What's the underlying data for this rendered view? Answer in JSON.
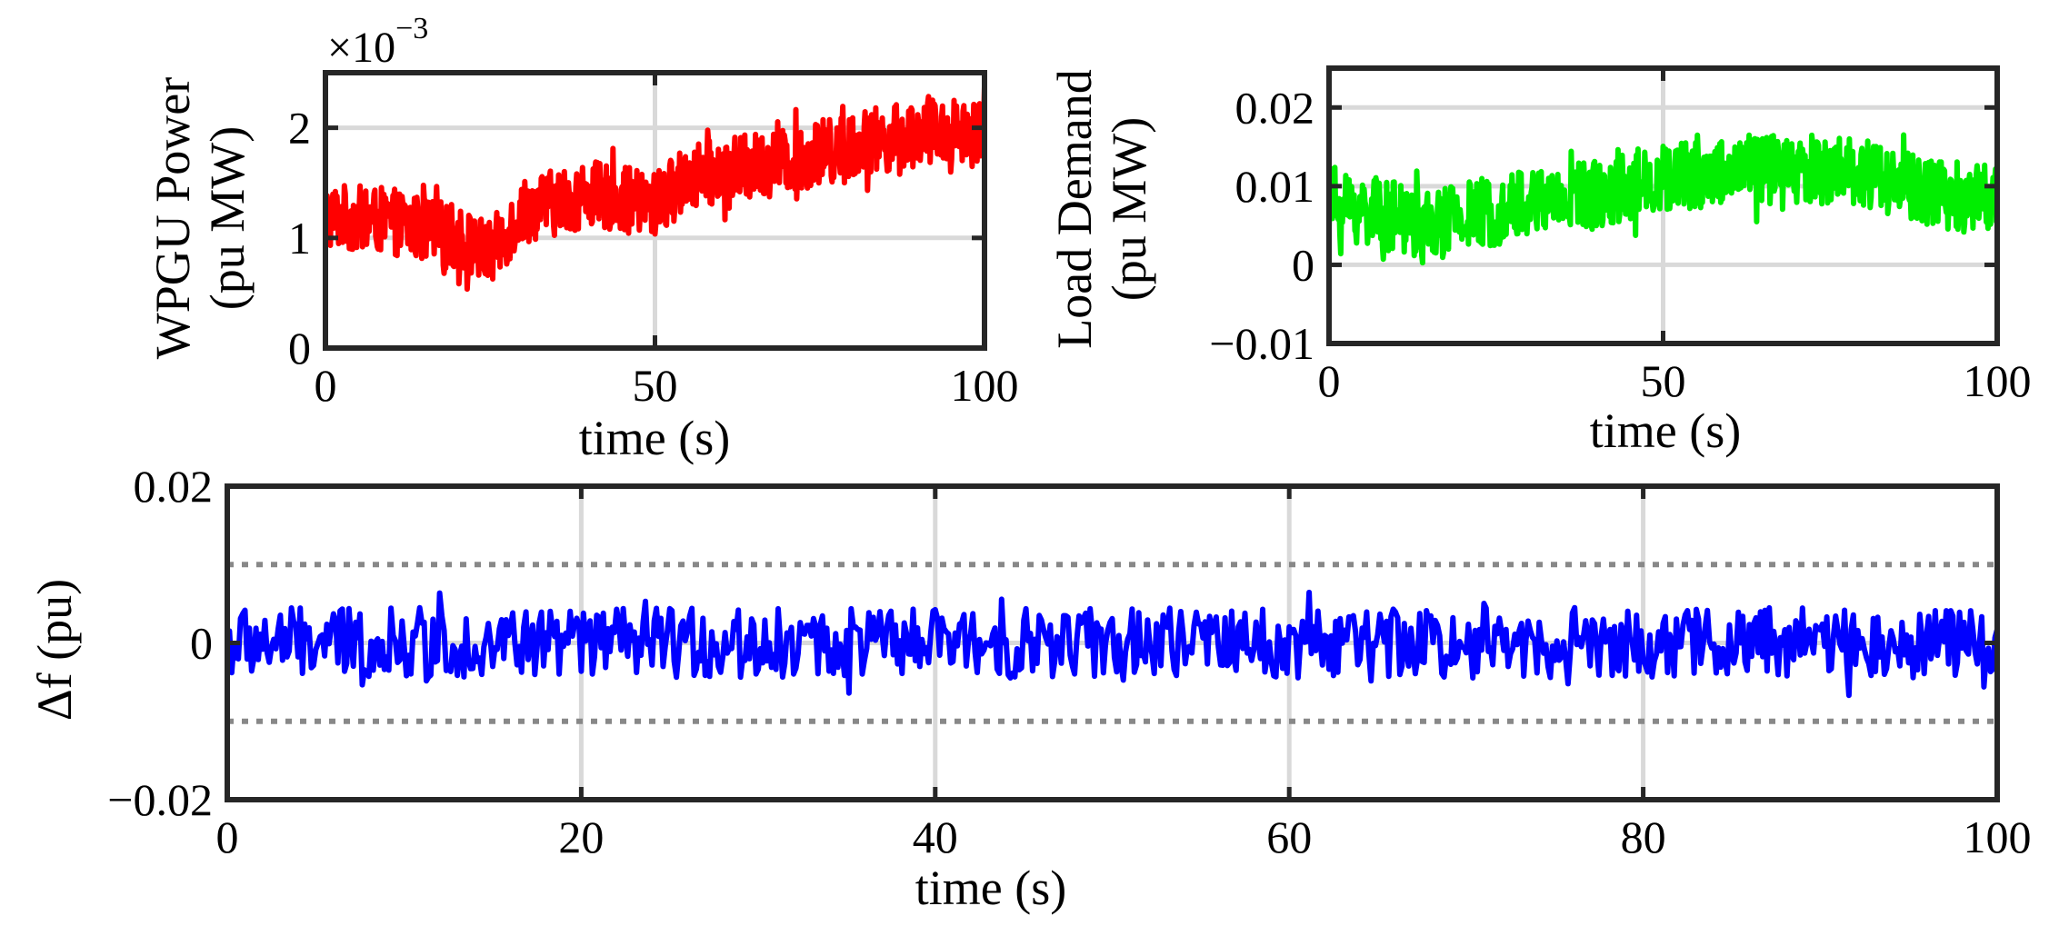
{
  "figure": {
    "aria_label": "WPGU power, load demand and frequency deviation over time"
  },
  "chart_data": [
    {
      "id": "wpgu",
      "type": "line",
      "title": "",
      "xlabel": "time (s)",
      "ylabel_lines": [
        "WPGU Power",
        "(pu MW)"
      ],
      "y_exponent_base": "×10",
      "y_exponent_power": "−3",
      "xlim": [
        0,
        100
      ],
      "ylim": [
        0,
        2.5
      ],
      "xticks": [
        0,
        50,
        100
      ],
      "xtick_labels": [
        "0",
        "50",
        "100"
      ],
      "yticks": [
        0,
        1,
        2
      ],
      "ytick_labels": [
        "0",
        "1",
        "2"
      ],
      "grid": true,
      "color": "#ff0000",
      "noise_amplitude": 0.3,
      "trend": [
        [
          0,
          1.2
        ],
        [
          10,
          1.15
        ],
        [
          20,
          1.0
        ],
        [
          25,
          0.85
        ],
        [
          30,
          1.25
        ],
        [
          40,
          1.4
        ],
        [
          50,
          1.3
        ],
        [
          55,
          1.55
        ],
        [
          70,
          1.7
        ],
        [
          80,
          1.85
        ],
        [
          90,
          1.95
        ],
        [
          100,
          2.0
        ]
      ],
      "series": [
        {
          "name": "WPGU Power"
        }
      ]
    },
    {
      "id": "load",
      "type": "line",
      "title": "",
      "xlabel": "time (s)",
      "ylabel_lines": [
        "Load Demand",
        "(pu MW)"
      ],
      "xlim": [
        0,
        100
      ],
      "ylim": [
        -0.01,
        0.025
      ],
      "xticks": [
        0,
        50,
        100
      ],
      "xtick_labels": [
        "0",
        "50",
        "100"
      ],
      "yticks": [
        -0.01,
        0,
        0.01,
        0.02
      ],
      "ytick_labels": [
        "−0.01",
        "0",
        "0.01",
        "0.02"
      ],
      "grid": true,
      "color": "#00ee00",
      "noise_amplitude": 0.0045,
      "trend": [
        [
          0,
          0.008
        ],
        [
          10,
          0.006
        ],
        [
          15,
          0.005
        ],
        [
          20,
          0.006
        ],
        [
          30,
          0.008
        ],
        [
          40,
          0.009
        ],
        [
          50,
          0.011
        ],
        [
          60,
          0.012
        ],
        [
          70,
          0.012
        ],
        [
          80,
          0.012
        ],
        [
          90,
          0.009
        ],
        [
          100,
          0.009
        ]
      ],
      "series": [
        {
          "name": "Load Demand"
        }
      ]
    },
    {
      "id": "df",
      "type": "line",
      "title": "",
      "xlabel": "time (s)",
      "ylabel_lines": [
        "Δf (pu)"
      ],
      "xlim": [
        0,
        100
      ],
      "ylim": [
        -0.02,
        0.02
      ],
      "xticks": [
        0,
        20,
        40,
        60,
        80,
        100
      ],
      "xtick_labels": [
        "0",
        "20",
        "40",
        "60",
        "80",
        "100"
      ],
      "yticks": [
        -0.02,
        0,
        0.02
      ],
      "ytick_labels": [
        "−0.02",
        "0",
        "0.02"
      ],
      "grid": true,
      "color": "#0000ff",
      "noise_amplitude": 0.0045,
      "trend": [
        [
          0,
          0
        ],
        [
          100,
          0
        ]
      ],
      "reference_lines": [
        0.01,
        -0.01
      ],
      "reference_line_color": "#888888",
      "series": [
        {
          "name": "Δf"
        }
      ]
    }
  ]
}
